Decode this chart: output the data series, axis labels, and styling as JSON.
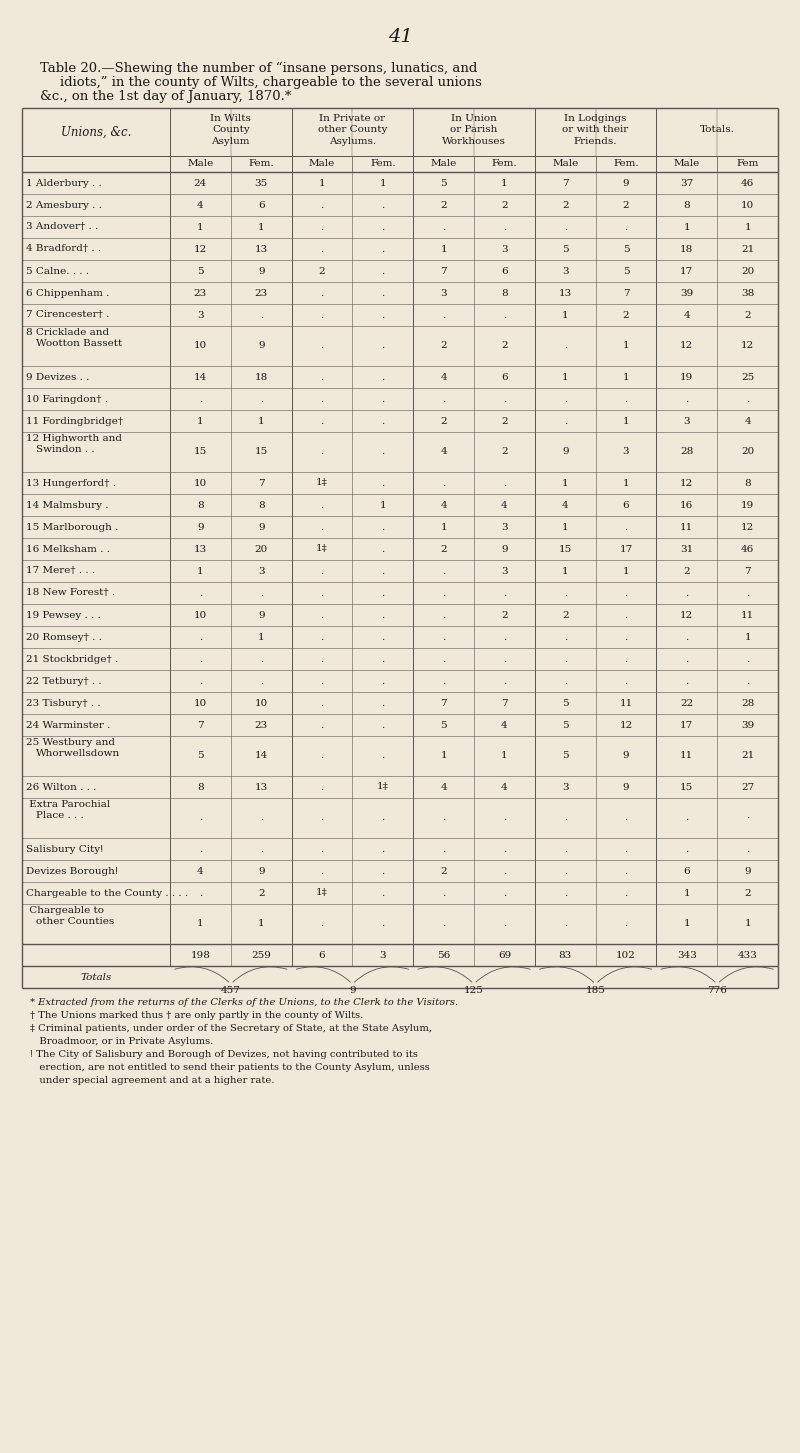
{
  "page_number": "41",
  "title_line1": "Table 20.—Shewing the number of “insane persons, lunatics, and",
  "title_line2": "idiots,” in the county of Wilts, chargeable to the several unions",
  "title_line3": "&c., on the 1st day of January, 1870.*",
  "col_headers_top": [
    "In Wilts\nCounty\nAsylum",
    "In Private or\nother County\nAsylums.",
    "In Union\nor Parish\nWorkhouses",
    "In Lodgings\nor with their\nFriends.",
    "Totals."
  ],
  "col_headers_sub": [
    "Male",
    "Fem.",
    "Male",
    "Fem.",
    "Male",
    "Fem.",
    "Male",
    "Fem.",
    "Male",
    "Fem"
  ],
  "rows": [
    {
      "num": "1",
      "name": "Alderbury . .",
      "data": [
        "24",
        "35",
        "1",
        "1",
        "5",
        "1",
        "7",
        "9",
        "37",
        "46"
      ]
    },
    {
      "num": "2",
      "name": "Amesbury . .",
      "data": [
        "4",
        "6",
        ".",
        ".",
        "2",
        "2",
        "2",
        "2",
        "8",
        "10"
      ]
    },
    {
      "num": "3",
      "name": "Andover† . .",
      "data": [
        "1",
        "1",
        ".",
        ".",
        ".",
        ".",
        ".",
        ".",
        "1",
        "1"
      ]
    },
    {
      "num": "4",
      "name": "Bradford† . .",
      "data": [
        "12",
        "13",
        ".",
        ".",
        "1",
        "3",
        "5",
        "5",
        "18",
        "21"
      ]
    },
    {
      "num": "5",
      "name": "Calne. . . .",
      "data": [
        "5",
        "9",
        "2",
        ".",
        "7",
        "6",
        "3",
        "5",
        "17",
        "20"
      ]
    },
    {
      "num": "6",
      "name": "Chippenham .",
      "data": [
        "23",
        "23",
        ".",
        ".",
        "3",
        "8",
        "13",
        "7",
        "39",
        "38"
      ]
    },
    {
      "num": "7",
      "name": "Cirencester† .",
      "data": [
        "3",
        ".",
        ".",
        ".",
        ".",
        ".",
        "1",
        "2",
        "4",
        "2"
      ]
    },
    {
      "num": "8",
      "name": "Cricklade and\nWootton Bassett",
      "data": [
        "10",
        "9",
        ".",
        ".",
        "2",
        "2",
        ".",
        "1",
        "12",
        "12"
      ]
    },
    {
      "num": "9",
      "name": "Devizes . .",
      "data": [
        "14",
        "18",
        ".",
        ".",
        "4",
        "6",
        "1",
        "1",
        "19",
        "25"
      ]
    },
    {
      "num": "10",
      "name": "Faringdon† .",
      "data": [
        ".",
        ".",
        ".",
        ".",
        ".",
        ".",
        ".",
        ".",
        ".",
        "."
      ]
    },
    {
      "num": "11",
      "name": "Fordingbridge†",
      "data": [
        "1",
        "1",
        ".",
        ".",
        "2",
        "2",
        ".",
        "1",
        "3",
        "4"
      ]
    },
    {
      "num": "12",
      "name": "Highworth and\nSwindon . .",
      "data": [
        "15",
        "15",
        ".",
        ".",
        "4",
        "2",
        "9",
        "3",
        "28",
        "20"
      ]
    },
    {
      "num": "13",
      "name": "Hungerford† .",
      "data": [
        "10",
        "7",
        "1‡",
        ".",
        ".",
        ".",
        "1",
        "1",
        "12",
        "8"
      ]
    },
    {
      "num": "14",
      "name": "Malmsbury .",
      "data": [
        "8",
        "8",
        ".",
        "1",
        "4",
        "4",
        "4",
        "6",
        "16",
        "19"
      ]
    },
    {
      "num": "15",
      "name": "Marlborough .",
      "data": [
        "9",
        "9",
        ".",
        ".",
        "1",
        "3",
        "1",
        ".",
        "11",
        "12"
      ]
    },
    {
      "num": "16",
      "name": "Melksham . .",
      "data": [
        "13",
        "20",
        "1‡",
        ".",
        "2",
        "9",
        "15",
        "17",
        "31",
        "46"
      ]
    },
    {
      "num": "17",
      "name": "Mere† . . .",
      "data": [
        "1",
        "3",
        ".",
        ".",
        ".",
        "3",
        "1",
        "1",
        "2",
        "7"
      ]
    },
    {
      "num": "18",
      "name": "New Forest† .",
      "data": [
        ".",
        ".",
        ".",
        ".",
        ".",
        ".",
        ".",
        ".",
        ".",
        "."
      ]
    },
    {
      "num": "19",
      "name": "Pewsey . . .",
      "data": [
        "10",
        "9",
        ".",
        ".",
        ".",
        "2",
        "2",
        ".",
        "12",
        "11"
      ]
    },
    {
      "num": "20",
      "name": "Romsey† . .",
      "data": [
        ".",
        "1",
        ".",
        ".",
        ".",
        ".",
        ".",
        ".",
        ".",
        "1"
      ]
    },
    {
      "num": "21",
      "name": "Stockbridge† .",
      "data": [
        ".",
        ".",
        ".",
        ".",
        ".",
        ".",
        ".",
        ".",
        ".",
        "."
      ]
    },
    {
      "num": "22",
      "name": "Tetbury† . .",
      "data": [
        ".",
        ".",
        ".",
        ".",
        ".",
        ".",
        ".",
        ".",
        ".",
        "."
      ]
    },
    {
      "num": "23",
      "name": "Tisbury† . .",
      "data": [
        "10",
        "10",
        ".",
        ".",
        "7",
        "7",
        "5",
        "11",
        "22",
        "28"
      ]
    },
    {
      "num": "24",
      "name": "Warminster .",
      "data": [
        "7",
        "23",
        ".",
        ".",
        "5",
        "4",
        "5",
        "12",
        "17",
        "39"
      ]
    },
    {
      "num": "25",
      "name": "Westbury and\nWhorwellsdown",
      "data": [
        "5",
        "14",
        ".",
        ".",
        "1",
        "1",
        "5",
        "9",
        "11",
        "21"
      ]
    },
    {
      "num": "26",
      "name": "Wilton . . .",
      "data": [
        "8",
        "13",
        ".",
        "1‡",
        "4",
        "4",
        "3",
        "9",
        "15",
        "27"
      ]
    },
    {
      "num": "",
      "name": "Extra Parochial\nPlace . . .",
      "data": [
        ".",
        ".",
        ".",
        ".",
        ".",
        ".",
        ".",
        ".",
        ".",
        "·"
      ]
    },
    {
      "num": "",
      "name": "Salisbury Cityǃ",
      "data": [
        ".",
        ".",
        ".",
        ".",
        ".",
        ".",
        ".",
        ".",
        ".",
        "."
      ]
    },
    {
      "num": "",
      "name": "Devizes Boroughǃ",
      "data": [
        "4",
        "9",
        ".",
        ".",
        "2",
        ".",
        ".",
        ".",
        "6",
        "9"
      ]
    },
    {
      "num": "",
      "name": "Chargeable to the County . . . .",
      "data": [
        ".",
        "2",
        "1‡",
        ".",
        ".",
        ".",
        ".",
        ".",
        "1",
        "2"
      ]
    },
    {
      "num": "",
      "name": "Chargeable to\nother Counties",
      "data": [
        "1",
        "1",
        ".",
        ".",
        ".",
        ".",
        ".",
        ".",
        "1",
        "1"
      ]
    }
  ],
  "totals_row": {
    "top": [
      "198",
      "259",
      "6",
      "3",
      "56",
      "69",
      "83",
      "102",
      "343",
      "433"
    ],
    "bottom_labels": [
      "457",
      "9",
      "125",
      "185",
      "776"
    ]
  },
  "footnotes": [
    "* Extracted from the returns of the Clerks of the Unions, to the Clerk to the Visitors.",
    "† The Unions marked thus † are only partly in the county of Wilts.",
    "‡ Criminal patients, under order of the Secretary of State, at the State Asylum,",
    "   Broadmoor, or in Private Asylums.",
    "ǃ The City of Salisbury and Borough of Devizes, not having contributed to its",
    "   erection, are not entitled to send their patients to the County Asylum, unless",
    "   under special agreement and at a higher rate."
  ],
  "bg_color": "#f0e8d8",
  "text_color": "#1a1a1a",
  "line_color": "#555555"
}
